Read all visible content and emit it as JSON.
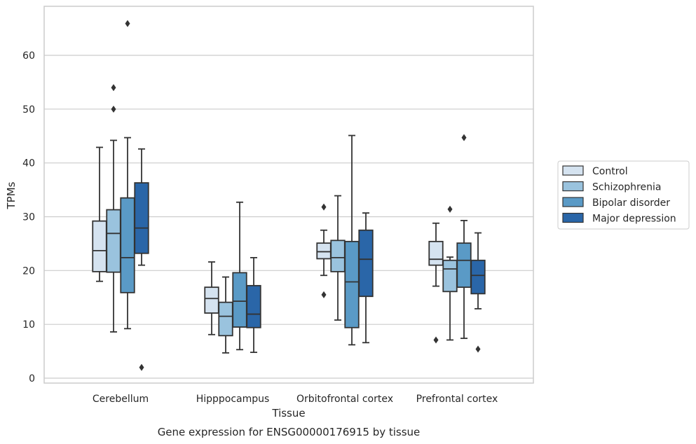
{
  "caption": "Gene expression for ENSG00000176915 by tissue",
  "chart_data": {
    "type": "box",
    "xlabel": "Tissue",
    "ylabel": "TPMs",
    "ylim": [
      -1,
      69
    ],
    "yticks": [
      0,
      10,
      20,
      30,
      40,
      50,
      60
    ],
    "grid": "horizontal",
    "legend_position": "right",
    "categories": [
      "Cerebellum",
      "Hipppocampus",
      "Orbitofrontal cortex",
      "Prefrontal cortex"
    ],
    "series": [
      {
        "name": "Control",
        "color": "#d5e3f0",
        "boxes": [
          {
            "whislo": 18,
            "q1": 19.8,
            "med": 23.7,
            "q3": 29.2,
            "whishi": 42.9,
            "fliers": []
          },
          {
            "whislo": 8.1,
            "q1": 12.1,
            "med": 14.8,
            "q3": 16.9,
            "whishi": 21.6,
            "fliers": []
          },
          {
            "whislo": 19.1,
            "q1": 22.2,
            "med": 23.5,
            "q3": 25.1,
            "whishi": 27.5,
            "fliers": [
              31.8,
              15.5
            ]
          },
          {
            "whislo": 17.1,
            "q1": 21,
            "med": 22.1,
            "q3": 25.4,
            "whishi": 28.8,
            "fliers": [
              7.1
            ]
          }
        ]
      },
      {
        "name": "Schizophrenia",
        "color": "#9ac3de",
        "boxes": [
          {
            "whislo": 8.6,
            "q1": 19.7,
            "med": 26.9,
            "q3": 31.3,
            "whishi": 44.2,
            "fliers": [
              54,
              50
            ]
          },
          {
            "whislo": 4.7,
            "q1": 7.9,
            "med": 11.5,
            "q3": 14.1,
            "whishi": 18.8,
            "fliers": []
          },
          {
            "whislo": 10.8,
            "q1": 19.8,
            "med": 22.4,
            "q3": 25.6,
            "whishi": 33.9,
            "fliers": []
          },
          {
            "whislo": 7.1,
            "q1": 16.1,
            "med": 20.3,
            "q3": 21.9,
            "whishi": 22.5,
            "fliers": [
              31.4
            ]
          }
        ]
      },
      {
        "name": "Bipolar disorder",
        "color": "#5a9ac6",
        "boxes": [
          {
            "whislo": 9.2,
            "q1": 15.9,
            "med": 22.4,
            "q3": 33.5,
            "whishi": 44.7,
            "fliers": [
              65.9
            ]
          },
          {
            "whislo": 5.3,
            "q1": 9.5,
            "med": 14.3,
            "q3": 19.6,
            "whishi": 32.7,
            "fliers": []
          },
          {
            "whislo": 6.2,
            "q1": 9.4,
            "med": 17.9,
            "q3": 25.4,
            "whishi": 45.1,
            "fliers": []
          },
          {
            "whislo": 7.4,
            "q1": 16.9,
            "med": 21.9,
            "q3": 25.1,
            "whishi": 29.3,
            "fliers": [
              44.7
            ]
          }
        ]
      },
      {
        "name": "Major depression",
        "color": "#2a66a8",
        "boxes": [
          {
            "whislo": 21,
            "q1": 23.2,
            "med": 27.9,
            "q3": 36.3,
            "whishi": 42.6,
            "fliers": [
              2
            ]
          },
          {
            "whislo": 4.8,
            "q1": 9.4,
            "med": 11.9,
            "q3": 17.2,
            "whishi": 22.4,
            "fliers": []
          },
          {
            "whislo": 6.6,
            "q1": 15.2,
            "med": 22.1,
            "q3": 27.5,
            "whishi": 30.7,
            "fliers": []
          },
          {
            "whislo": 12.9,
            "q1": 15.7,
            "med": 19.1,
            "q3": 21.9,
            "whishi": 27,
            "fliers": [
              5.4
            ]
          }
        ]
      }
    ]
  }
}
